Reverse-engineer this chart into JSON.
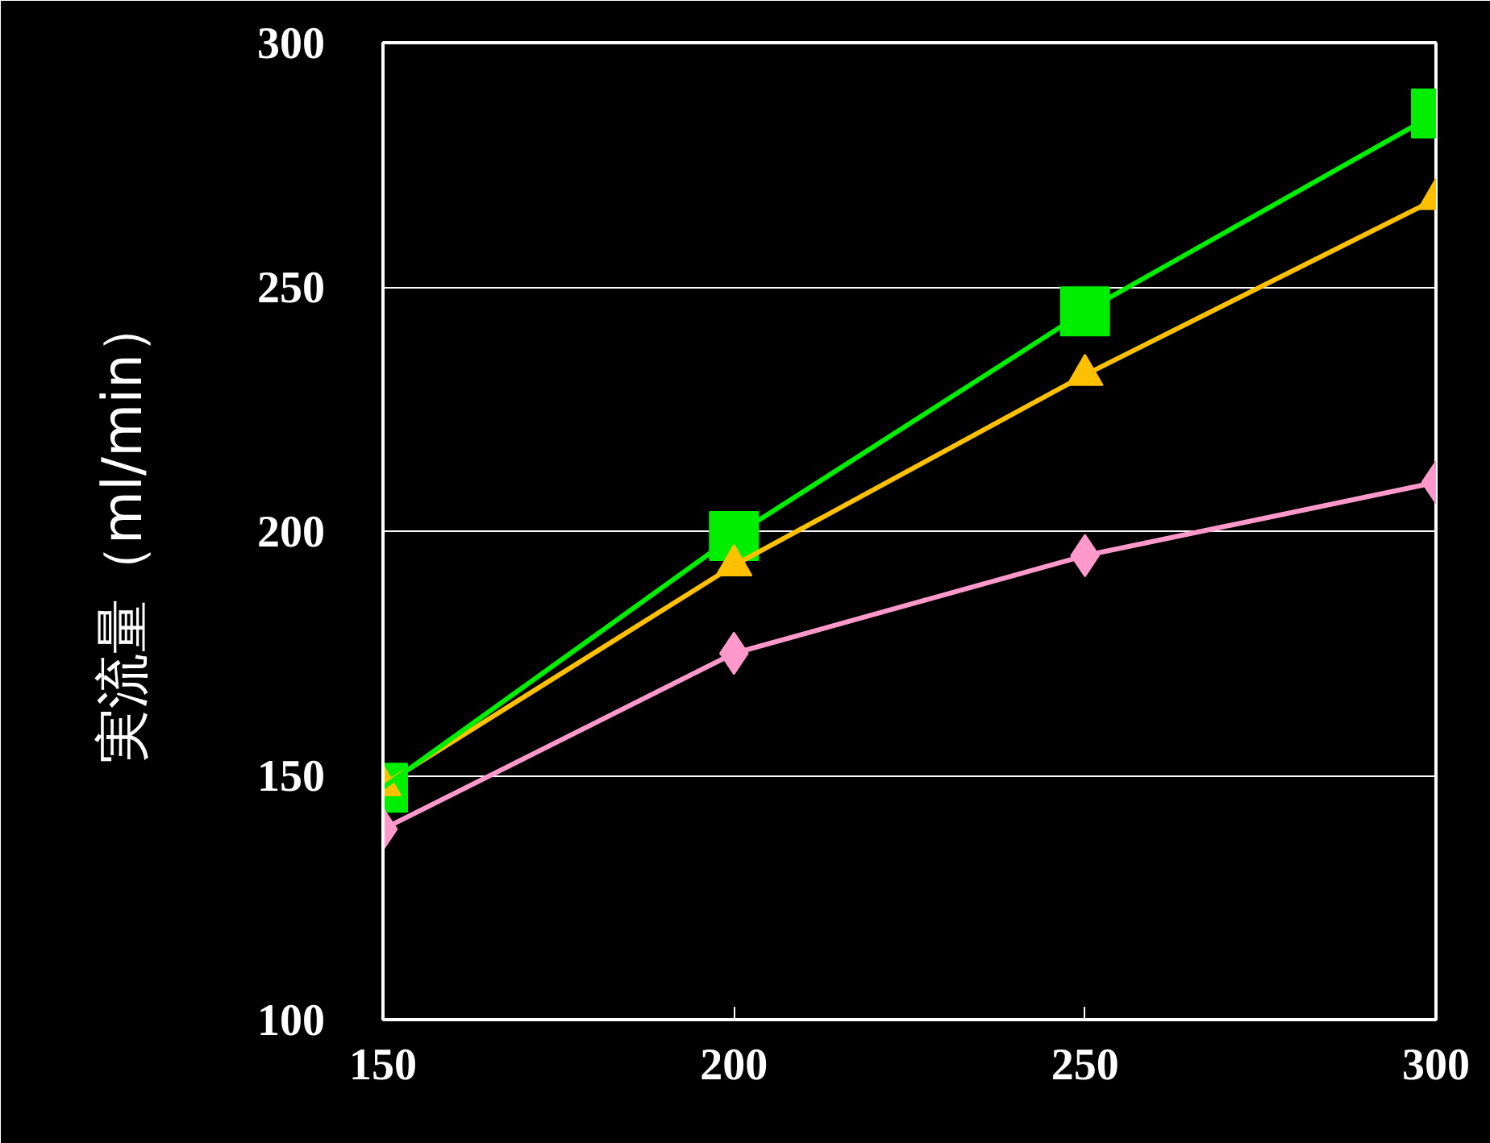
{
  "chart_data": {
    "type": "line",
    "ylabel": "実流量（ml/min）",
    "x": [
      150,
      200,
      250,
      300
    ],
    "series": [
      {
        "color": "#00ee00",
        "marker": "square",
        "values": [
          147.5,
          199,
          245,
          285.5
        ]
      },
      {
        "color": "#ffc000",
        "marker": "triangle",
        "values": [
          148,
          193,
          232,
          268
        ]
      },
      {
        "color": "#ff99cc",
        "marker": "diamond",
        "values": [
          139,
          175,
          195,
          210
        ]
      }
    ],
    "xlim": [
      150,
      300
    ],
    "xticks": [
      150,
      200,
      250,
      300
    ],
    "ylim": [
      100,
      300
    ],
    "yticks": [
      100,
      150,
      200,
      250,
      300
    ],
    "grid": "y",
    "line_style": "solid"
  }
}
